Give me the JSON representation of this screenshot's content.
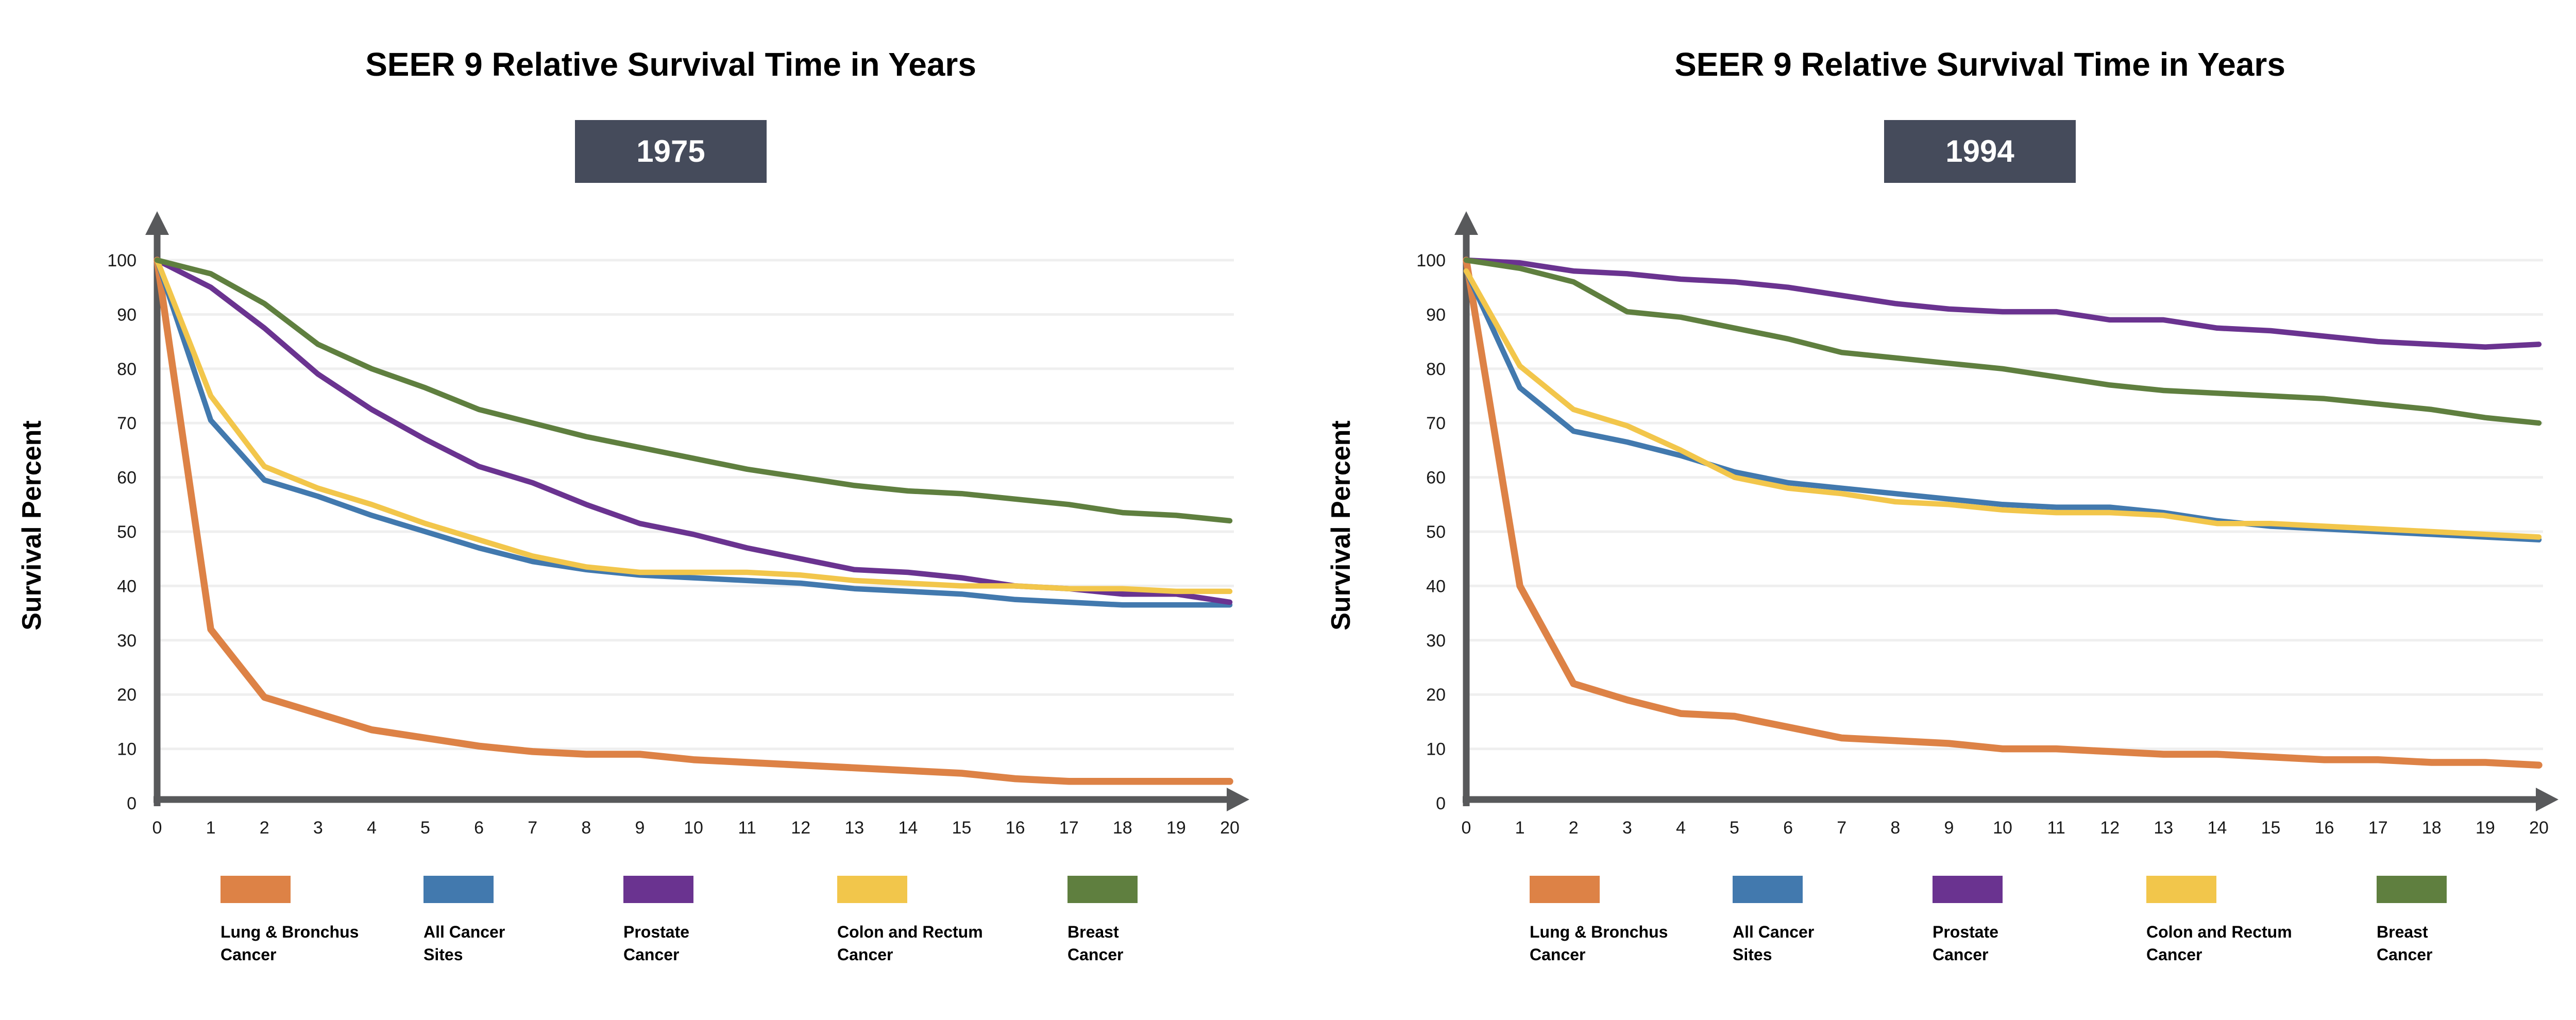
{
  "chart_data": [
    {
      "type": "line",
      "title": "SEER 9 Relative Survival Time in Years",
      "year_label": "1975",
      "ylabel": "Survival Percent",
      "xlabel": "",
      "xlim": [
        0,
        20
      ],
      "ylim": [
        0,
        100
      ],
      "grid": true,
      "legend_position": "bottom",
      "x_ticks": [
        0,
        1,
        2,
        3,
        4,
        5,
        6,
        7,
        8,
        9,
        10,
        11,
        12,
        13,
        14,
        15,
        16,
        17,
        18,
        19,
        20
      ],
      "y_ticks": [
        0,
        10,
        20,
        30,
        40,
        50,
        60,
        70,
        80,
        90,
        100
      ],
      "x": [
        0,
        1,
        2,
        3,
        4,
        5,
        6,
        7,
        8,
        9,
        10,
        11,
        12,
        13,
        14,
        15,
        16,
        17,
        18,
        19,
        20
      ],
      "series": [
        {
          "name": "Lung & Bronchus Cancer",
          "color": "#DD8246",
          "values": [
            100,
            32,
            19.5,
            16.5,
            13.5,
            12,
            10.5,
            9.5,
            9,
            9,
            8,
            7.5,
            7,
            6.5,
            6,
            5.5,
            4.5,
            4,
            4,
            4,
            4
          ]
        },
        {
          "name": "All Cancer Sites",
          "color": "#4279AE",
          "values": [
            100,
            70.5,
            59.5,
            56.5,
            53,
            50,
            47,
            44.5,
            43,
            42,
            41.5,
            41,
            40.5,
            39.5,
            39,
            38.5,
            37.5,
            37,
            36.5,
            36.5,
            36.5
          ]
        },
        {
          "name": "Prostate Cancer",
          "color": "#6A3390",
          "values": [
            100,
            95,
            87.5,
            79,
            72.5,
            67,
            62,
            59,
            55,
            51.5,
            49.5,
            47,
            45,
            43,
            42.5,
            41.5,
            40,
            39.5,
            38.5,
            38.5,
            37
          ]
        },
        {
          "name": "Colon and Rectum Cancer",
          "color": "#F2C64B",
          "values": [
            100,
            75,
            62,
            58,
            55,
            51.5,
            48.5,
            45.5,
            43.5,
            42.5,
            42.5,
            42.5,
            42,
            41,
            40.5,
            40,
            40,
            39.5,
            39.5,
            39,
            39
          ]
        },
        {
          "name": "Breast Cancer",
          "color": "#5F7F3F",
          "values": [
            100,
            97.5,
            92,
            84.5,
            80,
            76.5,
            72.5,
            70,
            67.5,
            65.5,
            63.5,
            61.5,
            60,
            58.5,
            57.5,
            57,
            56,
            55,
            53.5,
            53,
            52
          ]
        }
      ]
    },
    {
      "type": "line",
      "title": "SEER 9 Relative Survival Time in Years",
      "year_label": "1994",
      "ylabel": "Survival Percent",
      "xlabel": "",
      "xlim": [
        0,
        20
      ],
      "ylim": [
        0,
        100
      ],
      "grid": true,
      "legend_position": "bottom",
      "x_ticks": [
        0,
        1,
        2,
        3,
        4,
        5,
        6,
        7,
        8,
        9,
        10,
        11,
        12,
        13,
        14,
        15,
        16,
        17,
        18,
        19,
        20
      ],
      "y_ticks": [
        0,
        10,
        20,
        30,
        40,
        50,
        60,
        70,
        80,
        90,
        100
      ],
      "x": [
        0,
        1,
        2,
        3,
        4,
        5,
        6,
        7,
        8,
        9,
        10,
        11,
        12,
        13,
        14,
        15,
        16,
        17,
        18,
        19,
        20
      ],
      "series": [
        {
          "name": "Lung & Bronchus Cancer",
          "color": "#DD8246",
          "values": [
            100,
            40,
            22,
            19,
            16.5,
            16,
            14,
            12,
            11.5,
            11,
            10,
            10,
            9.5,
            9,
            9,
            8.5,
            8,
            8,
            7.5,
            7.5,
            7
          ]
        },
        {
          "name": "All Cancer Sites",
          "color": "#4279AE",
          "values": [
            98,
            76.5,
            68.5,
            66.5,
            64,
            61,
            59,
            58,
            57,
            56,
            55,
            54.5,
            54.5,
            53.5,
            52,
            51,
            50.5,
            50,
            49.5,
            49,
            48.5
          ]
        },
        {
          "name": "Prostate Cancer",
          "color": "#6A3390",
          "values": [
            100,
            99.5,
            98,
            97.5,
            96.5,
            96,
            95,
            93.5,
            92,
            91,
            90.5,
            90.5,
            89,
            89,
            87.5,
            87,
            86,
            85,
            84.5,
            84,
            84.5
          ]
        },
        {
          "name": "Colon and Rectum Cancer",
          "color": "#F2C64B",
          "values": [
            98,
            80.5,
            72.5,
            69.5,
            65,
            60,
            58,
            57,
            55.5,
            55,
            54,
            53.5,
            53.5,
            53,
            51.5,
            51.5,
            51,
            50.5,
            50,
            49.5,
            49
          ]
        },
        {
          "name": "Breast Cancer",
          "color": "#5F7F3F",
          "values": [
            100,
            98.5,
            96,
            90.5,
            89.5,
            87.5,
            85.5,
            83,
            82,
            81,
            80,
            78.5,
            77,
            76,
            75.5,
            75,
            74.5,
            73.5,
            72.5,
            71,
            70
          ]
        }
      ]
    }
  ],
  "legend": [
    {
      "line1": "Lung & Bronchus",
      "line2": "Cancer"
    },
    {
      "line1": "All Cancer",
      "line2": "Sites"
    },
    {
      "line1": "Prostate",
      "line2": "Cancer"
    },
    {
      "line1": "Colon and Rectum",
      "line2": "Cancer"
    },
    {
      "line1": "Breast",
      "line2": "Cancer"
    }
  ],
  "colors": {
    "badge_background": "#454B5B",
    "badge_text": "#FFFFFF",
    "axis": "#58595B",
    "gridline": "#EFEFEF",
    "text": "#000000"
  }
}
